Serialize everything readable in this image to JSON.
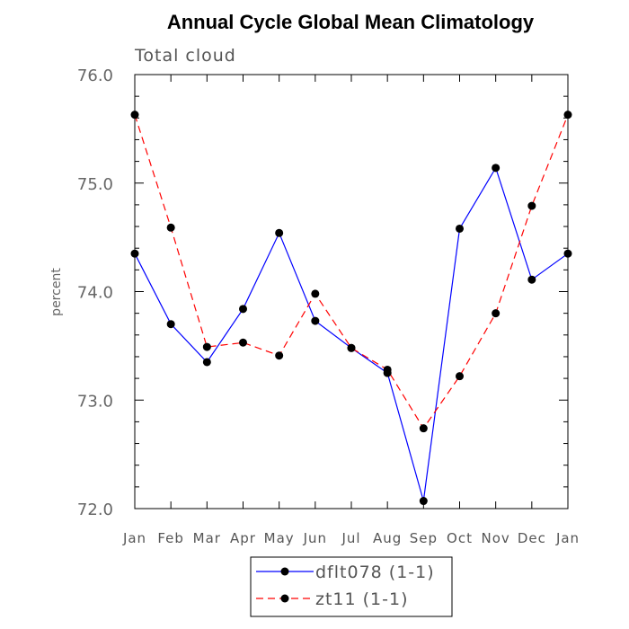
{
  "chart_data": {
    "type": "line",
    "title": "Annual Cycle Global Mean Climatology",
    "subtitle": "Total cloud",
    "xlabel": "",
    "ylabel": "percent",
    "categories": [
      "Jan",
      "Feb",
      "Mar",
      "Apr",
      "May",
      "Jun",
      "Jul",
      "Aug",
      "Sep",
      "Oct",
      "Nov",
      "Dec",
      "Jan"
    ],
    "ylim": [
      72.0,
      76.0
    ],
    "yticks": [
      "72.0",
      "73.0",
      "74.0",
      "75.0",
      "76.0"
    ],
    "grid": false,
    "legend_position": "bottom-center",
    "series": [
      {
        "name": "dflt078 (1-1)",
        "color": "#0000ff",
        "line_style": "solid",
        "marker": "filled-circle",
        "values": [
          74.35,
          73.7,
          73.35,
          73.84,
          74.54,
          73.73,
          73.48,
          73.25,
          72.07,
          74.58,
          75.14,
          74.11,
          74.35
        ]
      },
      {
        "name": "zt11 (1-1)",
        "color": "#ff0000",
        "line_style": "dashed",
        "marker": "filled-circle",
        "values": [
          75.63,
          74.59,
          73.49,
          73.53,
          73.41,
          73.98,
          73.48,
          73.28,
          72.74,
          73.22,
          73.8,
          74.79,
          75.63
        ]
      }
    ]
  }
}
